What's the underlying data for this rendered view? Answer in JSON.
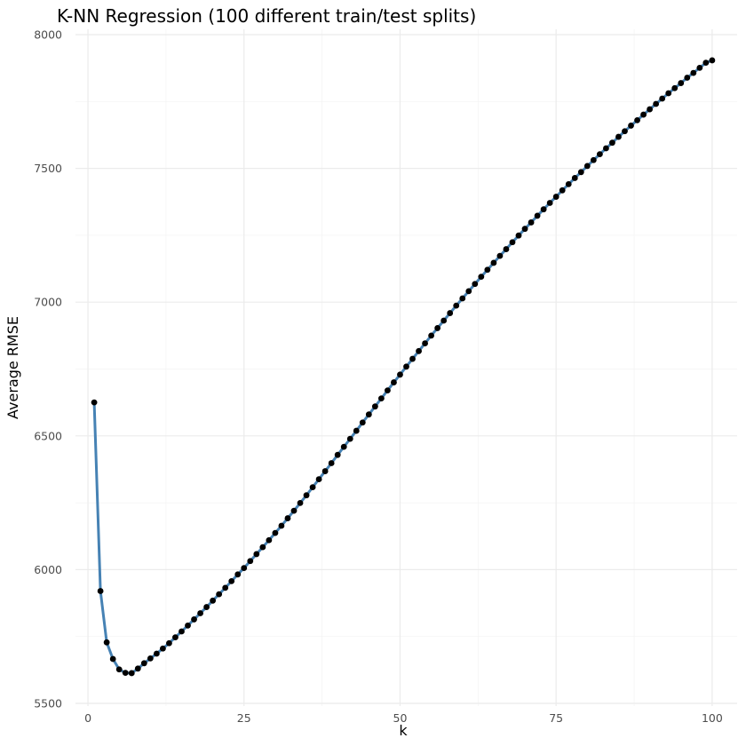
{
  "chart_data": {
    "type": "line",
    "title": "K-NN Regression (100 different train/test splits)",
    "xlabel": "k",
    "ylabel": "Average RMSE",
    "xlim": [
      -2,
      104
    ],
    "ylim": [
      5490,
      8020
    ],
    "x_ticks": [
      0,
      25,
      50,
      75,
      100
    ],
    "y_ticks": [
      5500,
      6000,
      6500,
      7000,
      7500,
      8000
    ],
    "grid": true,
    "legend": "none",
    "line_color": "#4682b4",
    "point_color": "#000000",
    "series": [
      {
        "x": [
          1,
          2,
          3,
          4,
          5,
          6,
          7,
          8,
          9,
          10,
          11,
          12,
          13,
          14,
          15,
          16,
          17,
          18,
          19,
          20,
          21,
          22,
          23,
          24,
          25,
          26,
          27,
          28,
          29,
          30,
          31,
          32,
          33,
          34,
          35,
          36,
          37,
          38,
          39,
          40,
          41,
          42,
          43,
          44,
          45,
          46,
          47,
          48,
          49,
          50,
          51,
          52,
          53,
          54,
          55,
          56,
          57,
          58,
          59,
          60,
          61,
          62,
          63,
          64,
          65,
          66,
          67,
          68,
          69,
          70,
          71,
          72,
          73,
          74,
          75,
          76,
          77,
          78,
          79,
          80,
          81,
          82,
          83,
          84,
          85,
          86,
          87,
          88,
          89,
          90,
          91,
          92,
          93,
          94,
          95,
          96,
          97,
          98,
          99,
          100
        ],
        "values": [
          6625,
          5920,
          5728,
          5666,
          5627,
          5614,
          5613,
          5630,
          5650,
          5668,
          5686,
          5705,
          5725,
          5747,
          5769,
          5791,
          5814,
          5837,
          5860,
          5884,
          5908,
          5932,
          5957,
          5982,
          6006,
          6032,
          6058,
          6084,
          6110,
          6137,
          6164,
          6192,
          6220,
          6249,
          6278,
          6308,
          6338,
          6368,
          6398,
          6429,
          6459,
          6489,
          6519,
          6550,
          6580,
          6610,
          6640,
          6670,
          6700,
          6729,
          6759,
          6788,
          6817,
          6846,
          6875,
          6903,
          6931,
          6959,
          6987,
          7014,
          7041,
          7068,
          7095,
          7121,
          7147,
          7173,
          7198,
          7224,
          7249,
          7274,
          7298,
          7323,
          7347,
          7371,
          7394,
          7418,
          7441,
          7464,
          7486,
          7509,
          7531,
          7553,
          7575,
          7596,
          7618,
          7639,
          7660,
          7680,
          7701,
          7721,
          7741,
          7761,
          7781,
          7800,
          7819,
          7839,
          7857,
          7876,
          7895,
          7904
        ]
      }
    ]
  }
}
